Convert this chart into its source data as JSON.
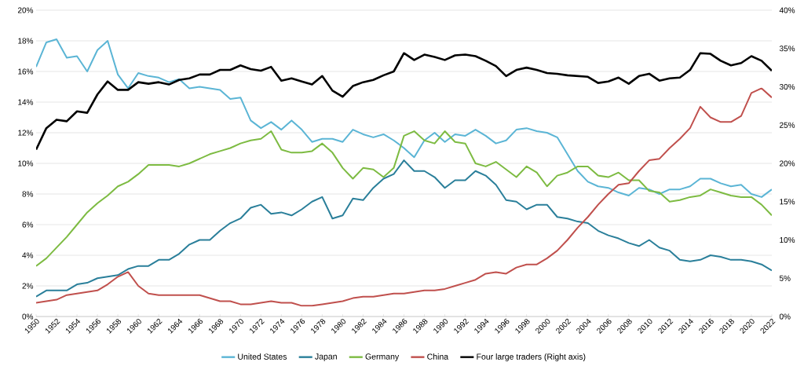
{
  "chart_data": {
    "type": "line",
    "x": [
      1950,
      1951,
      1952,
      1953,
      1954,
      1955,
      1956,
      1957,
      1958,
      1959,
      1960,
      1961,
      1962,
      1963,
      1964,
      1965,
      1966,
      1967,
      1968,
      1969,
      1970,
      1971,
      1972,
      1973,
      1974,
      1975,
      1976,
      1977,
      1978,
      1979,
      1980,
      1981,
      1982,
      1983,
      1984,
      1985,
      1986,
      1987,
      1988,
      1989,
      1990,
      1991,
      1992,
      1993,
      1994,
      1995,
      1996,
      1997,
      1998,
      1999,
      2000,
      2001,
      2002,
      2003,
      2004,
      2005,
      2006,
      2007,
      2008,
      2009,
      2010,
      2011,
      2012,
      2013,
      2014,
      2015,
      2016,
      2017,
      2018,
      2019,
      2020,
      2021,
      2022
    ],
    "xlim": [
      1950,
      2022
    ],
    "xticks": [
      1950,
      1952,
      1954,
      1956,
      1958,
      1960,
      1962,
      1964,
      1966,
      1968,
      1970,
      1972,
      1974,
      1976,
      1978,
      1980,
      1982,
      1984,
      1986,
      1988,
      1990,
      1992,
      1994,
      1996,
      1998,
      2000,
      2002,
      2004,
      2006,
      2008,
      2010,
      2012,
      2014,
      2016,
      2018,
      2020,
      2022
    ],
    "ylim": [
      0,
      20
    ],
    "yticks": [
      {
        "value": 0,
        "label": "0%"
      },
      {
        "value": 2,
        "label": "2%"
      },
      {
        "value": 4,
        "label": "4%"
      },
      {
        "value": 6,
        "label": "6%"
      },
      {
        "value": 8,
        "label": "8%"
      },
      {
        "value": 10,
        "label": "10%"
      },
      {
        "value": 12,
        "label": "12%"
      },
      {
        "value": 14,
        "label": "14%"
      },
      {
        "value": 16,
        "label": "16%"
      },
      {
        "value": 18,
        "label": "18%"
      },
      {
        "value": 20,
        "label": "20%"
      }
    ],
    "y2lim": [
      0,
      40
    ],
    "y2ticks": [
      {
        "value": 0,
        "label": "0%"
      },
      {
        "value": 5,
        "label": "5%"
      },
      {
        "value": 10,
        "label": "10%"
      },
      {
        "value": 15,
        "label": "15%"
      },
      {
        "value": 20,
        "label": "20%"
      },
      {
        "value": 25,
        "label": "25%"
      },
      {
        "value": 30,
        "label": "30%"
      },
      {
        "value": 35,
        "label": "35%"
      },
      {
        "value": 40,
        "label": "40%"
      }
    ],
    "grid": "y",
    "legend": "bottom",
    "series": [
      {
        "name": "United States",
        "color": "#5bb5d5",
        "values": [
          16.3,
          17.9,
          18.1,
          16.9,
          17.0,
          16.0,
          17.4,
          18.0,
          15.8,
          14.9,
          15.9,
          15.7,
          15.6,
          15.3,
          15.5,
          14.9,
          15.0,
          14.9,
          14.8,
          14.2,
          14.3,
          12.8,
          12.3,
          12.7,
          12.2,
          12.8,
          12.2,
          11.4,
          11.6,
          11.6,
          11.4,
          12.2,
          11.9,
          11.7,
          11.9,
          11.5,
          11.0,
          10.4,
          11.5,
          12.0,
          11.4,
          11.9,
          11.8,
          12.2,
          11.8,
          11.3,
          11.5,
          12.2,
          12.3,
          12.1,
          12.0,
          11.7,
          10.6,
          9.5,
          8.8,
          8.5,
          8.4,
          8.1,
          7.9,
          8.4,
          8.3,
          8.0,
          8.3,
          8.3,
          8.5,
          9.0,
          9.0,
          8.7,
          8.5,
          8.6,
          8.0,
          7.8,
          8.3
        ]
      },
      {
        "name": "Japan",
        "color": "#2a7f9a",
        "values": [
          1.3,
          1.7,
          1.7,
          1.7,
          2.1,
          2.2,
          2.5,
          2.6,
          2.7,
          3.1,
          3.3,
          3.3,
          3.7,
          3.7,
          4.1,
          4.7,
          5.0,
          5.0,
          5.6,
          6.1,
          6.4,
          7.1,
          7.3,
          6.7,
          6.8,
          6.6,
          7.0,
          7.5,
          7.8,
          6.4,
          6.6,
          7.7,
          7.6,
          8.4,
          9.0,
          9.3,
          10.2,
          9.5,
          9.5,
          9.1,
          8.4,
          8.9,
          8.9,
          9.5,
          9.2,
          8.6,
          7.6,
          7.5,
          7.0,
          7.3,
          7.3,
          6.5,
          6.4,
          6.2,
          6.1,
          5.6,
          5.3,
          5.1,
          4.8,
          4.6,
          5.0,
          4.5,
          4.3,
          3.7,
          3.6,
          3.7,
          4.0,
          3.9,
          3.7,
          3.7,
          3.6,
          3.4,
          3.0
        ]
      },
      {
        "name": "Germany",
        "color": "#7dbb42",
        "values": [
          3.3,
          3.8,
          4.5,
          5.2,
          6.0,
          6.8,
          7.4,
          7.9,
          8.5,
          8.8,
          9.3,
          9.9,
          9.9,
          9.9,
          9.8,
          10.0,
          10.3,
          10.6,
          10.8,
          11.0,
          11.3,
          11.5,
          11.6,
          12.1,
          10.9,
          10.7,
          10.7,
          10.8,
          11.3,
          10.7,
          9.7,
          9.0,
          9.7,
          9.6,
          9.1,
          9.7,
          11.8,
          12.1,
          11.5,
          11.3,
          12.1,
          11.4,
          11.3,
          10.0,
          9.8,
          10.1,
          9.6,
          9.1,
          9.8,
          9.4,
          8.5,
          9.2,
          9.4,
          9.8,
          9.8,
          9.2,
          9.1,
          9.4,
          8.9,
          8.9,
          8.2,
          8.1,
          7.5,
          7.6,
          7.8,
          7.9,
          8.3,
          8.1,
          7.9,
          7.8,
          7.8,
          7.3,
          6.6
        ]
      },
      {
        "name": "China",
        "color": "#c0504d",
        "values": [
          0.9,
          1.0,
          1.1,
          1.4,
          1.5,
          1.6,
          1.7,
          2.1,
          2.6,
          2.9,
          2.0,
          1.5,
          1.4,
          1.4,
          1.4,
          1.4,
          1.4,
          1.2,
          1.0,
          1.0,
          0.8,
          0.8,
          0.9,
          1.0,
          0.9,
          0.9,
          0.7,
          0.7,
          0.8,
          0.9,
          1.0,
          1.2,
          1.3,
          1.3,
          1.4,
          1.5,
          1.5,
          1.6,
          1.7,
          1.7,
          1.8,
          2.0,
          2.2,
          2.4,
          2.8,
          2.9,
          2.8,
          3.2,
          3.4,
          3.4,
          3.8,
          4.3,
          5.0,
          5.8,
          6.5,
          7.3,
          8.0,
          8.6,
          8.7,
          9.5,
          10.2,
          10.3,
          11.0,
          11.6,
          12.3,
          13.7,
          13.0,
          12.7,
          12.7,
          13.1,
          14.6,
          14.9,
          14.3
        ]
      },
      {
        "name": "Four large traders (Right axis)",
        "color": "#000000",
        "axis": "y2",
        "values": [
          21.8,
          24.6,
          25.7,
          25.5,
          26.8,
          26.6,
          29.0,
          30.7,
          29.6,
          29.6,
          30.6,
          30.4,
          30.6,
          30.3,
          30.9,
          31.1,
          31.6,
          31.6,
          32.2,
          32.2,
          32.8,
          32.3,
          32.1,
          32.6,
          30.8,
          31.1,
          30.7,
          30.3,
          31.4,
          29.5,
          28.7,
          30.1,
          30.6,
          30.9,
          31.5,
          32.0,
          34.4,
          33.5,
          34.2,
          33.9,
          33.5,
          34.1,
          34.2,
          34.0,
          33.4,
          32.7,
          31.4,
          32.2,
          32.5,
          32.2,
          31.8,
          31.7,
          31.5,
          31.4,
          31.3,
          30.5,
          30.7,
          31.2,
          30.4,
          31.4,
          31.7,
          30.8,
          31.1,
          31.2,
          32.2,
          34.4,
          34.3,
          33.4,
          32.8,
          33.1,
          34.0,
          33.4,
          32.1
        ]
      }
    ]
  }
}
